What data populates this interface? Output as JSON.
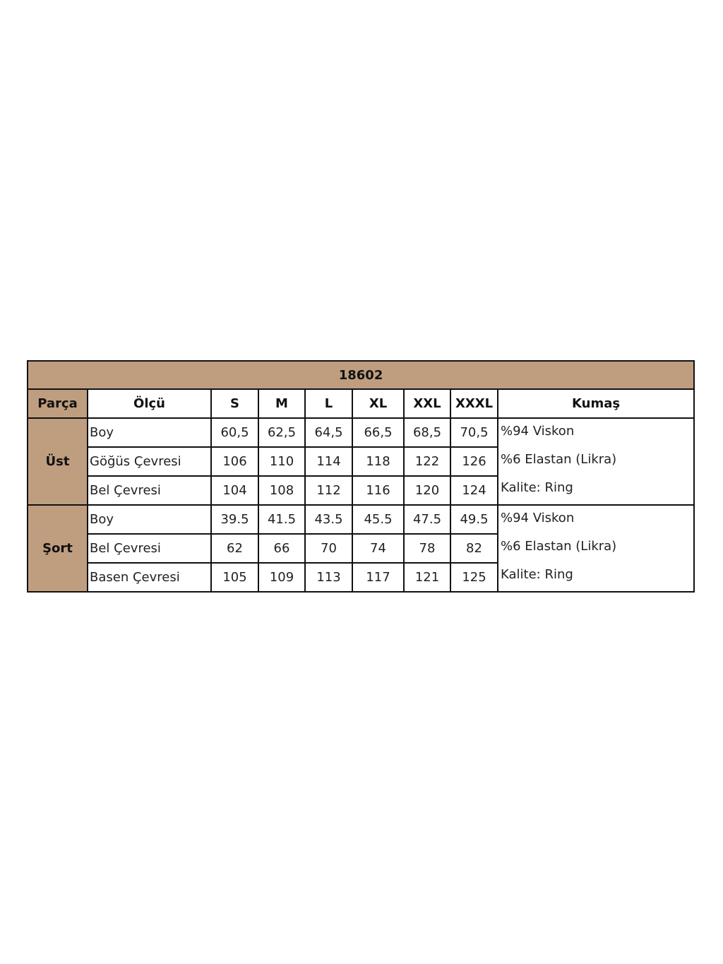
{
  "title": "18602",
  "headers": [
    "Parça",
    "Ölçü",
    "S",
    "M",
    "L",
    "XL",
    "XXL",
    "XXXL",
    "Kumaş"
  ],
  "groups": [
    {
      "part": "Üst",
      "rows": [
        {
          "label": "Boy",
          "values": [
            "60,5",
            "62,5",
            "64,5",
            "66,5",
            "68,5",
            "70,5"
          ]
        },
        {
          "label": "Göğüs Çevresi",
          "values": [
            "106",
            "110",
            "114",
            "118",
            "122",
            "126"
          ]
        },
        {
          "label": "Bel Çevresi",
          "values": [
            "104",
            "108",
            "112",
            "116",
            "120",
            "124"
          ]
        }
      ],
      "fabric": [
        "%94 Viskon",
        "%6 Elastan (Likra)",
        "Kalite: Ring"
      ]
    },
    {
      "part": "Şort",
      "rows": [
        {
          "label": "Boy",
          "values": [
            "39.5",
            "41.5",
            "43.5",
            "45.5",
            "47.5",
            "49.5"
          ]
        },
        {
          "label": "Bel Çevresi",
          "values": [
            "62",
            "66",
            "70",
            "74",
            "78",
            "82"
          ]
        },
        {
          "label": "Basen Çevresi",
          "values": [
            "105",
            "109",
            "113",
            "117",
            "121",
            "125"
          ]
        }
      ],
      "fabric": [
        "%94 Viskon",
        "%6 Elastan (Likra)",
        "Kalite: Ring"
      ]
    }
  ],
  "colors": {
    "header_fill": "#bf9e80",
    "border": "#111111"
  }
}
